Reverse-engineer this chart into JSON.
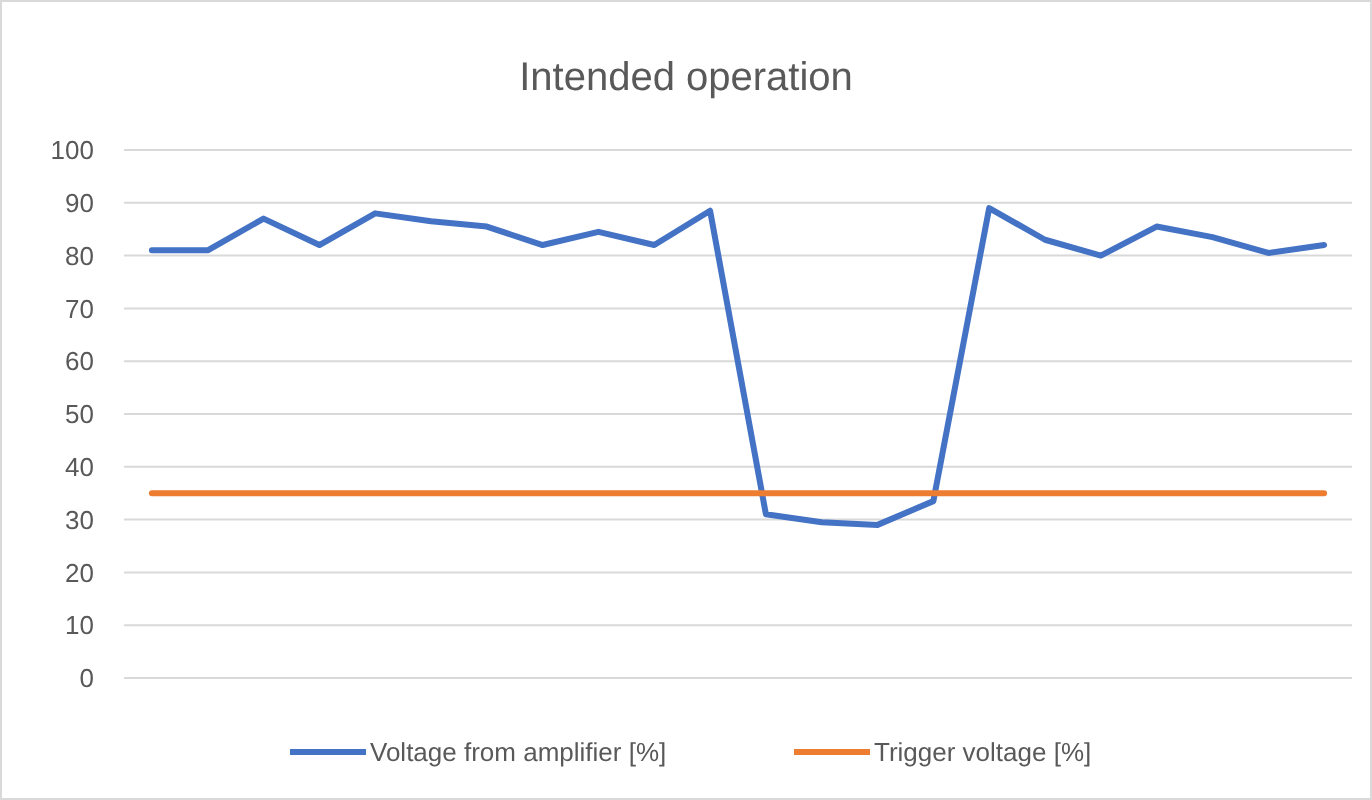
{
  "chart_data": {
    "type": "line",
    "title": "Intended operation",
    "categories": [
      null,
      null,
      null,
      null,
      null,
      null,
      null,
      null,
      null,
      null,
      null,
      null,
      null,
      null,
      null,
      null,
      null,
      null,
      null,
      null,
      null,
      null
    ],
    "series": [
      {
        "name": "Voltage from amplifier [%]",
        "color": "#4472c4",
        "values": [
          81,
          81,
          87,
          82,
          88,
          86.5,
          85.5,
          82,
          84.5,
          82,
          88.5,
          31,
          29.5,
          29,
          33.5,
          89,
          83,
          80,
          85.5,
          83.5,
          80.5,
          82
        ]
      },
      {
        "name": "Trigger voltage [%]",
        "color": "#ed7d31",
        "values": [
          35,
          35,
          35,
          35,
          35,
          35,
          35,
          35,
          35,
          35,
          35,
          35,
          35,
          35,
          35,
          35,
          35,
          35,
          35,
          35,
          35,
          35
        ]
      }
    ],
    "ylim": [
      0,
      100
    ],
    "yticks": [
      0,
      10,
      20,
      30,
      40,
      50,
      60,
      70,
      80,
      90,
      100
    ],
    "grid": "y",
    "legend": "bottom",
    "marker": "none",
    "line_style": "solid"
  }
}
